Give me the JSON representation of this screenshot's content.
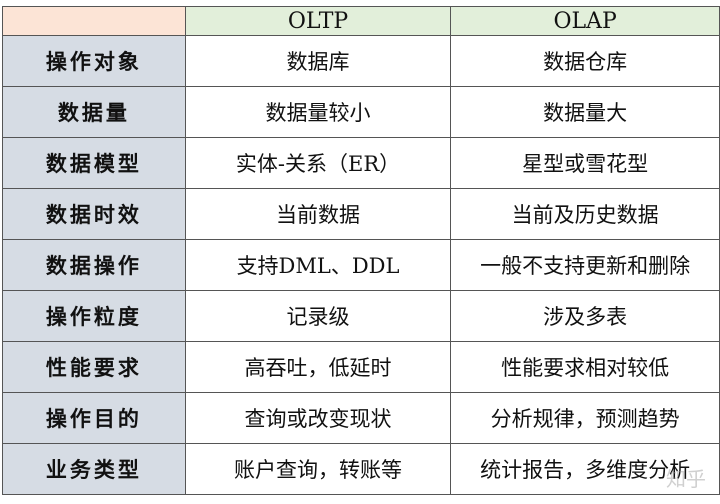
{
  "header": [
    "",
    "OLTP",
    "OLAP"
  ],
  "rows": [
    [
      "操作对象",
      "数据库",
      "数据仓库"
    ],
    [
      "数据量",
      "数据量较小",
      "数据量大"
    ],
    [
      "数据模型",
      "实体-关系（ER）",
      "星型或雪花型"
    ],
    [
      "数据时效",
      "当前数据",
      "当前及历史数据"
    ],
    [
      "数据操作",
      "支持DML、DDL",
      "一般不支持更新和删除"
    ],
    [
      "操作粒度",
      "记录级",
      "涉及多表"
    ],
    [
      "性能要求",
      "高吞吐，低延时",
      "性能要求相对较低"
    ],
    [
      "操作目的",
      "查询或改变现状",
      "分析规律，预测趋势"
    ],
    [
      "业务类型",
      "账户查询，转账等",
      "统计报告，多维度分析"
    ]
  ],
  "watermark": "知乎",
  "colors": {
    "header_corner": "#fce4d6",
    "header_cols": "#e2efda",
    "first_col": "#d6dce4"
  }
}
